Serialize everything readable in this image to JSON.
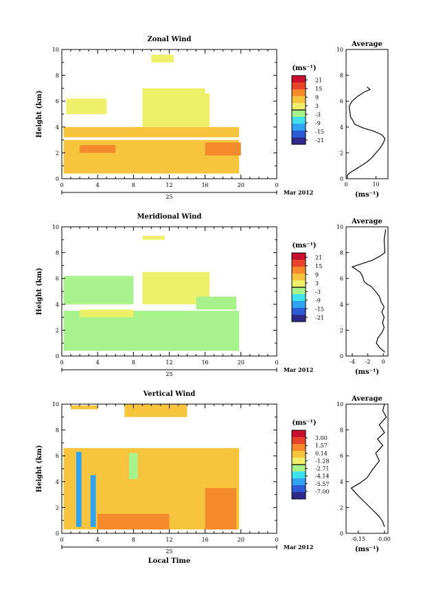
{
  "chart_data": [
    {
      "type": "heatmap",
      "title": "Zonal Wind",
      "ylabel": "Height (km)",
      "xlim": [
        0,
        24
      ],
      "ylim": [
        0,
        10
      ],
      "xticks": [
        "0",
        "4",
        "8",
        "12",
        "16",
        "20",
        "0"
      ],
      "yticks": [
        "0",
        "2",
        "4",
        "6",
        "8",
        "10"
      ],
      "date_day": "25",
      "date_month": "Mar 2012",
      "colorbar": {
        "unit_label": "(ms⁻¹)",
        "ticks": [
          "21",
          "15",
          "9",
          "3",
          "-3",
          "-9",
          "-15",
          "-21"
        ],
        "range": [
          -24,
          24
        ],
        "colors": [
          "#2e2a8c",
          "#2d5bd6",
          "#2fa3f0",
          "#3fe1ec",
          "#a8f28c",
          "#eef06a",
          "#f7c43d",
          "#f58a2c",
          "#e8432a",
          "#c8102e"
        ]
      },
      "layers": [
        {
          "x": [
            0.2,
            19.8
          ],
          "y": [
            0.4,
            3.0
          ],
          "value": 6
        },
        {
          "x": [
            2.0,
            6.0
          ],
          "y": [
            2.0,
            2.6
          ],
          "value": 12
        },
        {
          "x": [
            16.0,
            20.0
          ],
          "y": [
            1.8,
            2.8
          ],
          "value": 11
        },
        {
          "x": [
            0.2,
            19.8
          ],
          "y": [
            3.2,
            4.0
          ],
          "value": 5
        },
        {
          "x": [
            0.5,
            5.0
          ],
          "y": [
            5.0,
            6.2
          ],
          "value": 1
        },
        {
          "x": [
            9.0,
            16.5
          ],
          "y": [
            4.0,
            6.6
          ],
          "value": 1
        },
        {
          "x": [
            9.0,
            16.0
          ],
          "y": [
            6.6,
            7.0
          ],
          "value": 3
        },
        {
          "x": [
            10.0,
            12.5
          ],
          "y": [
            9.0,
            9.6
          ],
          "value": 1
        }
      ]
    },
    {
      "type": "line",
      "title": "Average",
      "xlabel": "(ms⁻¹)",
      "xlim": [
        0,
        14
      ],
      "ylim": [
        0,
        10
      ],
      "xticks": [
        "0",
        "10"
      ],
      "yticks": [
        "0",
        "2",
        "4",
        "6",
        "8",
        "10"
      ],
      "x": [
        0.3,
        0.5,
        1.5,
        3,
        5,
        7,
        8.5,
        10,
        11.5,
        12.5,
        13,
        12,
        9,
        6,
        3,
        1.5,
        1,
        2,
        4,
        6,
        8,
        7
      ],
      "y": [
        0.0,
        0.3,
        0.5,
        0.7,
        1.0,
        1.3,
        1.6,
        2.0,
        2.4,
        2.8,
        3.1,
        3.4,
        3.7,
        3.9,
        4.2,
        4.8,
        5.6,
        6.0,
        6.4,
        6.7,
        6.9,
        7.1
      ]
    },
    {
      "type": "heatmap",
      "title": "Meridional Wind",
      "ylabel": "Height (km)",
      "xlim": [
        0,
        24
      ],
      "ylim": [
        0,
        10
      ],
      "xticks": [
        "0",
        "4",
        "8",
        "12",
        "16",
        "20",
        "0"
      ],
      "yticks": [
        "0",
        "2",
        "4",
        "6",
        "8",
        "10"
      ],
      "date_day": "25",
      "date_month": "Mar 2012",
      "colorbar": {
        "unit_label": "(ms⁻¹)",
        "ticks": [
          "21",
          "15",
          "9",
          "3",
          "-3",
          "-9",
          "-15",
          "-21"
        ],
        "range": [
          -24,
          24
        ],
        "colors": [
          "#2e2a8c",
          "#2d5bd6",
          "#2fa3f0",
          "#3fe1ec",
          "#a8f28c",
          "#eef06a",
          "#f7c43d",
          "#f58a2c",
          "#e8432a",
          "#c8102e"
        ]
      },
      "layers": [
        {
          "x": [
            0.2,
            19.8
          ],
          "y": [
            0.4,
            3.5
          ],
          "value": -4
        },
        {
          "x": [
            2.0,
            8.0
          ],
          "y": [
            3.0,
            3.6
          ],
          "value": 0
        },
        {
          "x": [
            0.2,
            8.0
          ],
          "y": [
            4.0,
            6.2
          ],
          "value": -3
        },
        {
          "x": [
            9.0,
            16.5
          ],
          "y": [
            4.0,
            6.5
          ],
          "value": 1
        },
        {
          "x": [
            15.0,
            19.5
          ],
          "y": [
            3.6,
            4.6
          ],
          "value": -3
        },
        {
          "x": [
            9.0,
            11.5
          ],
          "y": [
            9.0,
            9.3
          ],
          "value": 1
        }
      ]
    },
    {
      "type": "line",
      "title": "Average",
      "xlabel": "(ms⁻¹)",
      "xlim": [
        -4.8,
        0.6
      ],
      "ylim": [
        0,
        10
      ],
      "xticks": [
        "-4",
        "-2",
        "0"
      ],
      "yticks": [
        "0",
        "2",
        "4",
        "6",
        "8",
        "10"
      ],
      "x": [
        0.2,
        -0.4,
        -0.9,
        -0.7,
        -0.2,
        0.1,
        -0.1,
        0.1,
        -0.2,
        0.1,
        -0.3,
        -0.5,
        -1.0,
        -1.6,
        -2.2,
        -2.5,
        -2.7,
        -3.0,
        -4.0,
        -1.5,
        -0.5,
        0.2,
        0.1,
        0.3
      ],
      "y": [
        0.3,
        0.6,
        1.0,
        1.4,
        1.8,
        2.2,
        2.6,
        3.0,
        3.4,
        3.8,
        4.2,
        4.6,
        5.0,
        5.4,
        5.6,
        5.8,
        6.2,
        6.5,
        6.9,
        7.4,
        7.7,
        8.0,
        9.0,
        9.8
      ]
    },
    {
      "type": "heatmap",
      "title": "Vertical Wind",
      "xlabel": "Local Time",
      "ylabel": "Height (km)",
      "xlim": [
        0,
        24
      ],
      "ylim": [
        0,
        10
      ],
      "xticks": [
        "0",
        "4",
        "8",
        "12",
        "16",
        "20",
        "0"
      ],
      "yticks": [
        "0",
        "2",
        "4",
        "6",
        "8",
        "10"
      ],
      "date_day": "25",
      "date_month": "Mar 2012",
      "colorbar": {
        "unit_label": "(ms⁻¹)",
        "ticks": [
          "3.00",
          "1.57",
          "0.14",
          "-1.28",
          "-2.71",
          "-4.14",
          "-5.57",
          "-7.00"
        ],
        "range": [
          -8.43,
          4.43
        ],
        "colors": [
          "#2e2a8c",
          "#2d5bd6",
          "#2fa3f0",
          "#3fe1ec",
          "#a8f28c",
          "#eef06a",
          "#f7c43d",
          "#f58a2c",
          "#e8432a",
          "#c8102e"
        ]
      },
      "layers": [
        {
          "x": [
            0.2,
            19.8
          ],
          "y": [
            0.3,
            6.6
          ],
          "value": 0.1
        },
        {
          "x": [
            4.0,
            12.0
          ],
          "y": [
            0.3,
            1.5
          ],
          "value": 0.7
        },
        {
          "x": [
            16.0,
            19.5
          ],
          "y": [
            0.3,
            3.5
          ],
          "value": 1.2
        },
        {
          "x": [
            1.6,
            2.2
          ],
          "y": [
            0.5,
            6.3
          ],
          "value": -5.5
        },
        {
          "x": [
            3.2,
            3.8
          ],
          "y": [
            0.5,
            4.5
          ],
          "value": -4.8
        },
        {
          "x": [
            7.5,
            8.5
          ],
          "y": [
            4.2,
            6.2
          ],
          "value": -2.5
        },
        {
          "x": [
            7.0,
            14.0
          ],
          "y": [
            9.0,
            10.0
          ],
          "value": 0.2
        },
        {
          "x": [
            1.0,
            4.0
          ],
          "y": [
            9.6,
            9.9
          ],
          "value": 0.2
        }
      ]
    },
    {
      "type": "line",
      "title": "Average",
      "xlabel": "(ms⁻¹)",
      "xlim": [
        -0.22,
        0.02
      ],
      "ylim": [
        0,
        10
      ],
      "xticks": [
        "-0.15",
        "0.00"
      ],
      "yticks": [
        "0",
        "2",
        "4",
        "6",
        "8",
        "10"
      ],
      "x": [
        0.0,
        -0.01,
        -0.03,
        -0.06,
        -0.09,
        -0.12,
        -0.15,
        -0.17,
        -0.19,
        -0.14,
        -0.1,
        -0.07,
        -0.03,
        -0.05,
        -0.01,
        -0.04,
        0.0,
        -0.03,
        0.01,
        -0.01,
        0.0
      ],
      "y": [
        0.5,
        0.9,
        1.3,
        1.7,
        2.1,
        2.5,
        2.9,
        3.2,
        3.5,
        3.9,
        4.3,
        4.9,
        5.6,
        6.2,
        6.8,
        7.3,
        7.8,
        8.4,
        9.0,
        9.5,
        10.0
      ]
    }
  ]
}
